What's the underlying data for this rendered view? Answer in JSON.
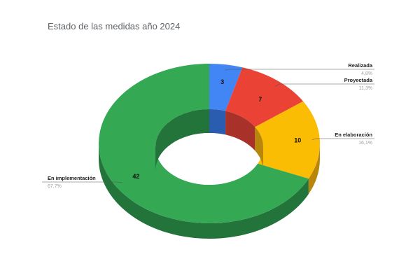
{
  "chart_data": {
    "type": "pie",
    "variant": "3d-donut",
    "title": "Estado de las medidas año 2024",
    "slices": [
      {
        "label": "Realizada",
        "value": 3,
        "percent_label": "4,8%",
        "color": "#4285f4",
        "side_color": "#2a5db0"
      },
      {
        "label": "Proyectada",
        "value": 7,
        "percent_label": "11,3%",
        "color": "#ea4335",
        "side_color": "#a8322a"
      },
      {
        "label": "En elaboración",
        "value": 10,
        "percent_label": "16,1%",
        "color": "#fbbc04",
        "side_color": "#b8860b"
      },
      {
        "label": "En implementación",
        "value": 42,
        "percent_label": "67,7%",
        "color": "#34a853",
        "side_color": "#23743a"
      }
    ]
  }
}
